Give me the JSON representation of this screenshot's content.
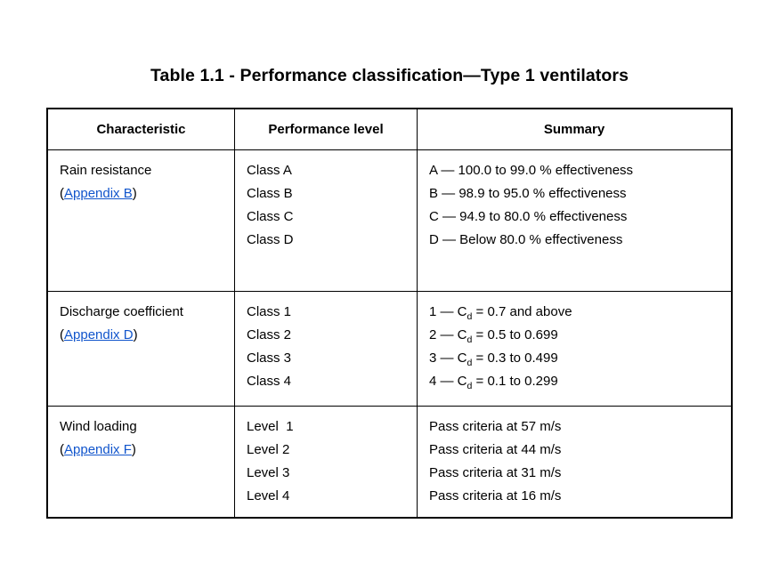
{
  "title": "Table 1.1 - Performance classification—Type 1 ventilators",
  "colors": {
    "link": "#1155cc",
    "text": "#000000",
    "border": "#000000"
  },
  "table": {
    "headers": [
      "Characteristic",
      "Performance level",
      "Summary"
    ],
    "rows": [
      {
        "name": "Rain resistance",
        "paren_open": "(",
        "link": "Appendix B",
        "paren_close": ")",
        "levels": [
          "Class A",
          "Class B",
          "Class C",
          "Class D"
        ],
        "summary": [
          {
            "pre": "A — 100.0 to 99.0 % effectiveness",
            "sub": "",
            "post": ""
          },
          {
            "pre": "B — 98.9 to 95.0 % effectiveness",
            "sub": "",
            "post": ""
          },
          {
            "pre": "C — 94.9 to 80.0 % effectiveness",
            "sub": "",
            "post": ""
          },
          {
            "pre": "D — Below 80.0 % effectiveness",
            "sub": "",
            "post": ""
          }
        ]
      },
      {
        "name": "Discharge coefficient",
        "paren_open": "(",
        "link": "Appendix D",
        "paren_close": ")",
        "levels": [
          "Class 1",
          "Class 2",
          "Class 3",
          "Class 4"
        ],
        "summary": [
          {
            "pre": "1 — C",
            "sub": "d",
            "post": " = 0.7 and above"
          },
          {
            "pre": "2 — C",
            "sub": "d",
            "post": " = 0.5 to 0.699"
          },
          {
            "pre": "3 — C",
            "sub": "d",
            "post": " = 0.3 to 0.499"
          },
          {
            "pre": "4 — C",
            "sub": "d",
            "post": " = 0.1 to 0.299"
          }
        ]
      },
      {
        "name": "Wind loading",
        "paren_open": "(",
        "link": "Appendix F",
        "paren_close": ")",
        "levels": [
          "Level  1",
          "Level 2",
          "Level 3",
          "Level 4"
        ],
        "summary": [
          {
            "pre": "Pass criteria at 57 m/s",
            "sub": "",
            "post": ""
          },
          {
            "pre": "Pass criteria at 44 m/s",
            "sub": "",
            "post": ""
          },
          {
            "pre": "Pass criteria at 31 m/s",
            "sub": "",
            "post": ""
          },
          {
            "pre": "Pass criteria at 16 m/s",
            "sub": "",
            "post": ""
          }
        ]
      }
    ]
  }
}
